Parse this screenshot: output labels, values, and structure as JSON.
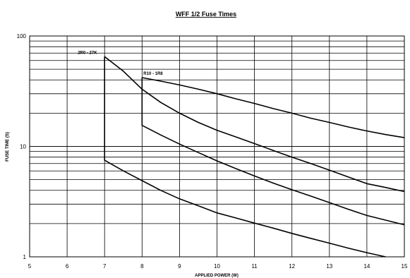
{
  "chart_data": {
    "type": "line",
    "title": "WFF 1/2 Fuse Times",
    "xlabel": "APPLIED POWER (W)",
    "ylabel": "FUSE TIME (S)",
    "xlim": [
      5,
      15
    ],
    "ylim": [
      1,
      100
    ],
    "yscale": "log",
    "grid": true,
    "x_ticks": [
      "5",
      "6",
      "7",
      "8",
      "9",
      "10",
      "11",
      "12",
      "13",
      "14",
      "15"
    ],
    "y_ticks": [
      "1",
      "10",
      "100"
    ],
    "annotations": [
      {
        "text": "2R0 - 27K",
        "x": 7,
        "y": 65
      },
      {
        "text": "R10 - 1R8",
        "x": 8,
        "y": 42
      }
    ],
    "series": [
      {
        "points": [
          [
            7,
            65
          ],
          [
            7.5,
            48
          ],
          [
            8,
            33
          ],
          [
            8.5,
            25
          ],
          [
            9,
            20
          ],
          [
            9.5,
            16.5
          ],
          [
            10,
            14
          ],
          [
            10.5,
            12.2
          ],
          [
            11,
            10.6
          ],
          [
            11.5,
            9.2
          ],
          [
            12,
            8
          ],
          [
            12.5,
            7
          ],
          [
            13,
            6.1
          ],
          [
            13.5,
            5.3
          ],
          [
            14,
            4.6
          ],
          [
            14.5,
            4.25
          ],
          [
            15,
            3.9
          ]
        ]
      },
      {
        "points": [
          [
            7,
            65
          ],
          [
            7,
            7.5
          ],
          [
            7.5,
            6
          ],
          [
            8,
            4.9
          ],
          [
            8.5,
            4
          ],
          [
            9,
            3.35
          ],
          [
            9.5,
            2.9
          ],
          [
            10,
            2.5
          ],
          [
            10.5,
            2.25
          ],
          [
            11,
            2.02
          ],
          [
            11.5,
            1.82
          ],
          [
            12,
            1.63
          ],
          [
            12.5,
            1.47
          ],
          [
            13,
            1.33
          ],
          [
            13.5,
            1.2
          ],
          [
            14,
            1.09
          ],
          [
            14.5,
            1.0
          ]
        ]
      },
      {
        "points": [
          [
            8,
            42
          ],
          [
            8.5,
            39
          ],
          [
            9,
            36
          ],
          [
            9.5,
            33
          ],
          [
            10,
            30
          ],
          [
            10.5,
            27
          ],
          [
            11,
            24.5
          ],
          [
            11.5,
            22
          ],
          [
            12,
            20
          ],
          [
            12.5,
            18
          ],
          [
            13,
            16.5
          ],
          [
            13.5,
            15
          ],
          [
            14,
            13.8
          ],
          [
            14.5,
            12.8
          ],
          [
            15,
            12
          ]
        ]
      },
      {
        "points": [
          [
            8,
            42
          ],
          [
            8,
            15.5
          ],
          [
            8.5,
            12.7
          ],
          [
            9,
            10.5
          ],
          [
            9.5,
            8.8
          ],
          [
            10,
            7.4
          ],
          [
            10.5,
            6.3
          ],
          [
            11,
            5.4
          ],
          [
            11.5,
            4.65
          ],
          [
            12,
            4.05
          ],
          [
            12.5,
            3.55
          ],
          [
            13,
            3.1
          ],
          [
            13.5,
            2.7
          ],
          [
            14,
            2.37
          ],
          [
            14.5,
            2.15
          ],
          [
            15,
            1.95
          ]
        ]
      }
    ]
  }
}
